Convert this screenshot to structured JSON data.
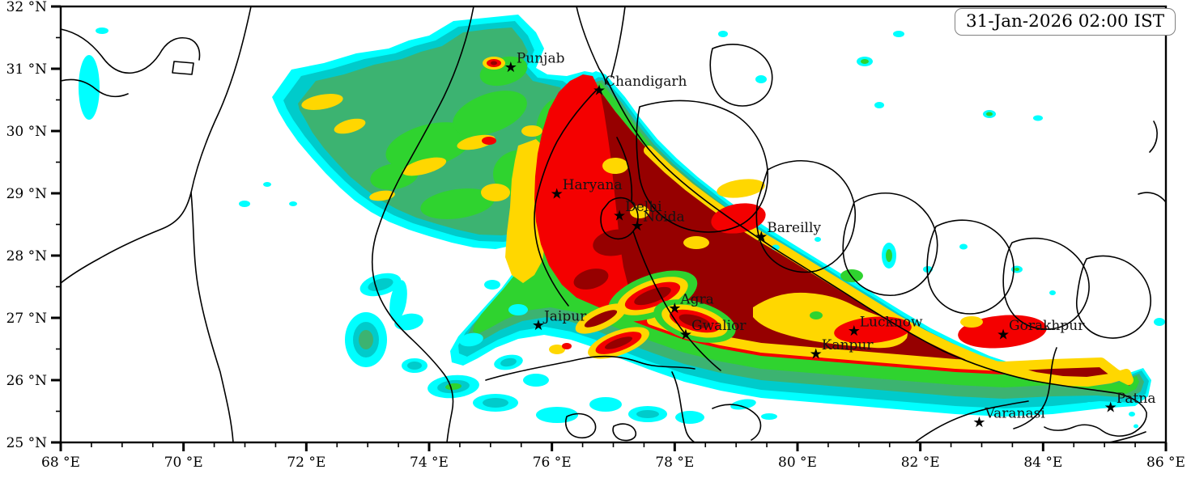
{
  "timestamp": {
    "text": "31-Jan-2026 02:00 IST"
  },
  "map": {
    "axes": {
      "lon": {
        "unit_suffix": " °E",
        "min": 68,
        "max": 86,
        "major_ticks": [
          68,
          70,
          72,
          74,
          76,
          78,
          80,
          82,
          84,
          86
        ],
        "minor_step": 0.5
      },
      "lat": {
        "unit_suffix": " °N",
        "min": 25,
        "max": 32,
        "major_ticks": [
          25,
          26,
          27,
          28,
          29,
          30,
          31,
          32
        ],
        "minor_step": 0.5
      }
    },
    "cities": [
      {
        "name": "Punjab",
        "lon": 75.33,
        "lat": 31.03
      },
      {
        "name": "Chandigarh",
        "lon": 76.77,
        "lat": 30.66
      },
      {
        "name": "Haryana",
        "lon": 76.08,
        "lat": 29.0
      },
      {
        "name": "Delhi",
        "lon": 77.1,
        "lat": 28.65
      },
      {
        "name": "Noida",
        "lon": 77.39,
        "lat": 28.49
      },
      {
        "name": "Bareilly",
        "lon": 79.41,
        "lat": 28.31
      },
      {
        "name": "Jaipur",
        "lon": 75.78,
        "lat": 26.89
      },
      {
        "name": "Agra",
        "lon": 78.0,
        "lat": 27.16
      },
      {
        "name": "Gwalior",
        "lon": 78.18,
        "lat": 26.74
      },
      {
        "name": "Lucknow",
        "lon": 80.92,
        "lat": 26.8
      },
      {
        "name": "Kanpur",
        "lon": 80.3,
        "lat": 26.43
      },
      {
        "name": "Gorakhpur",
        "lon": 83.35,
        "lat": 26.74
      },
      {
        "name": "Varanasi",
        "lon": 82.96,
        "lat": 25.33
      },
      {
        "name": "Patna",
        "lon": 85.1,
        "lat": 25.57
      }
    ],
    "palette": {
      "l1": "#00FFFF",
      "l2": "#00CBCB",
      "l3": "#3CB371",
      "l4": "#2FD32F",
      "l5": "#FFD700",
      "l6": "#F40000",
      "l7": "#960000"
    },
    "boundary_color": "#000000",
    "frame_color": "#000000",
    "background": "#FFFFFF"
  }
}
